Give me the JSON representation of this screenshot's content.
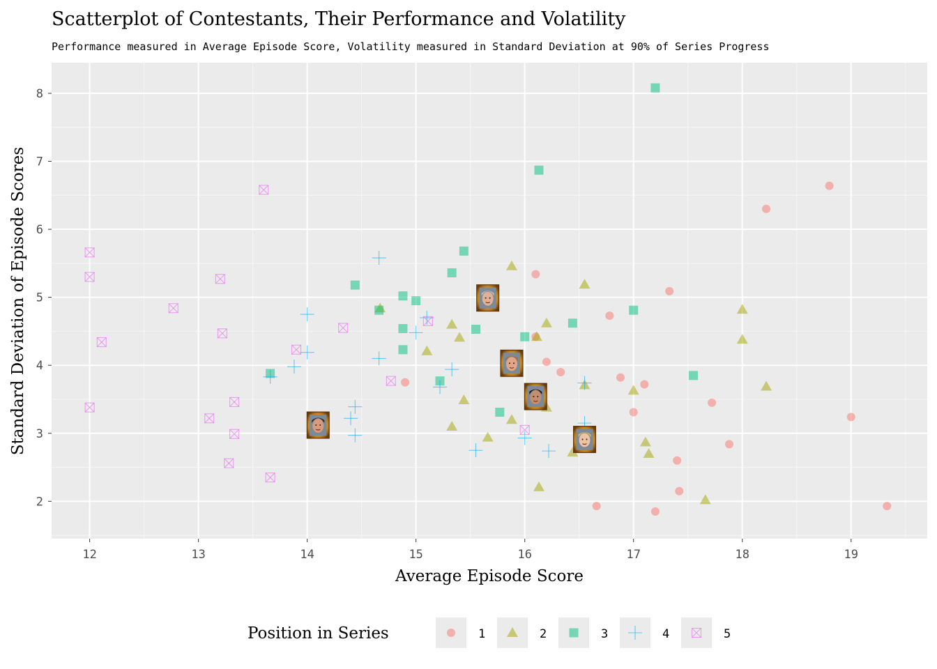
{
  "chart_data": {
    "type": "scatter",
    "title": "Scatterplot of Contestants, Their Performance and Volatility",
    "subtitle": "Performance measured in Average Episode Score, Volatility measured in Standard Deviation at 90% of Series Progress",
    "xlabel": "Average Episode Score",
    "ylabel": "Standard Deviation of Episode Scores",
    "xlim": [
      11.65,
      19.7
    ],
    "ylim": [
      1.45,
      8.45
    ],
    "x_ticks": [
      "12",
      "13",
      "14",
      "15",
      "16",
      "17",
      "18",
      "19"
    ],
    "y_ticks": [
      "2",
      "3",
      "4",
      "5",
      "6",
      "7",
      "8"
    ],
    "grid": true,
    "legend": {
      "title": "Position in Series",
      "placement": "bottom",
      "entries": [
        "1",
        "2",
        "3",
        "4",
        "5"
      ]
    },
    "series": [
      {
        "name": "1",
        "marker": "circle",
        "color": "#F8766D",
        "points": [
          [
            14.9,
            3.75
          ],
          [
            16.1,
            5.34
          ],
          [
            16.2,
            4.05
          ],
          [
            16.33,
            3.9
          ],
          [
            16.1,
            4.42
          ],
          [
            16.78,
            4.73
          ],
          [
            16.88,
            3.82
          ],
          [
            17.1,
            3.72
          ],
          [
            17.33,
            5.09
          ],
          [
            17.0,
            3.31
          ],
          [
            17.4,
            2.6
          ],
          [
            17.42,
            2.15
          ],
          [
            17.2,
            1.85
          ],
          [
            16.66,
            1.93
          ],
          [
            17.72,
            3.45
          ],
          [
            17.88,
            2.84
          ],
          [
            18.22,
            6.3
          ],
          [
            18.8,
            6.64
          ],
          [
            19.0,
            3.24
          ],
          [
            19.33,
            1.93
          ]
        ]
      },
      {
        "name": "2",
        "marker": "triangle",
        "color": "#A3A500",
        "points": [
          [
            14.67,
            4.84
          ],
          [
            15.1,
            4.21
          ],
          [
            15.33,
            4.6
          ],
          [
            15.4,
            4.41
          ],
          [
            15.44,
            3.49
          ],
          [
            15.33,
            3.1
          ],
          [
            15.66,
            2.94
          ],
          [
            15.88,
            3.2
          ],
          [
            15.88,
            5.46
          ],
          [
            16.11,
            4.42
          ],
          [
            16.2,
            4.62
          ],
          [
            16.2,
            3.38
          ],
          [
            16.13,
            2.21
          ],
          [
            16.44,
            2.72
          ],
          [
            16.55,
            5.19
          ],
          [
            16.55,
            3.71
          ],
          [
            17.0,
            3.63
          ],
          [
            17.11,
            2.87
          ],
          [
            17.14,
            2.7
          ],
          [
            17.66,
            2.02
          ],
          [
            18.0,
            4.82
          ],
          [
            18.0,
            4.38
          ],
          [
            18.22,
            3.69
          ]
        ]
      },
      {
        "name": "3",
        "marker": "square",
        "color": "#00BF7D",
        "points": [
          [
            13.66,
            3.88
          ],
          [
            14.44,
            5.18
          ],
          [
            14.66,
            4.81
          ],
          [
            14.88,
            5.02
          ],
          [
            14.88,
            4.54
          ],
          [
            14.88,
            4.23
          ],
          [
            15.0,
            4.95
          ],
          [
            15.22,
            3.77
          ],
          [
            15.33,
            5.36
          ],
          [
            15.44,
            5.68
          ],
          [
            15.55,
            4.53
          ],
          [
            15.77,
            3.31
          ],
          [
            16.0,
            4.42
          ],
          [
            16.13,
            6.87
          ],
          [
            16.44,
            4.62
          ],
          [
            17.0,
            4.81
          ],
          [
            17.2,
            8.08
          ],
          [
            17.55,
            3.85
          ]
        ]
      },
      {
        "name": "4",
        "marker": "plus",
        "color": "#00B0F6",
        "points": [
          [
            13.66,
            3.83
          ],
          [
            13.88,
            3.98
          ],
          [
            14.0,
            4.75
          ],
          [
            14.0,
            4.19
          ],
          [
            14.4,
            3.22
          ],
          [
            14.44,
            3.39
          ],
          [
            14.44,
            2.97
          ],
          [
            14.66,
            5.58
          ],
          [
            14.66,
            4.1
          ],
          [
            15.0,
            4.48
          ],
          [
            15.1,
            4.7
          ],
          [
            15.22,
            3.68
          ],
          [
            15.33,
            3.94
          ],
          [
            15.55,
            2.75
          ],
          [
            16.0,
            2.93
          ],
          [
            16.22,
            2.74
          ],
          [
            16.55,
            3.74
          ],
          [
            16.55,
            3.15
          ]
        ]
      },
      {
        "name": "5",
        "marker": "square-x",
        "color": "#E76BF3",
        "points": [
          [
            12.0,
            5.66
          ],
          [
            12.0,
            5.3
          ],
          [
            12.0,
            3.38
          ],
          [
            12.11,
            4.34
          ],
          [
            12.77,
            4.84
          ],
          [
            13.1,
            3.22
          ],
          [
            13.2,
            5.27
          ],
          [
            13.22,
            4.47
          ],
          [
            13.28,
            2.56
          ],
          [
            13.33,
            3.46
          ],
          [
            13.33,
            2.99
          ],
          [
            13.6,
            6.58
          ],
          [
            13.66,
            2.35
          ],
          [
            13.9,
            4.23
          ],
          [
            14.33,
            4.55
          ],
          [
            14.77,
            3.77
          ],
          [
            15.11,
            4.65
          ],
          [
            16.0,
            3.05
          ]
        ]
      }
    ],
    "highlighted_contestants": [
      [
        14.1,
        3.12
      ],
      [
        15.66,
        4.99
      ],
      [
        15.88,
        4.03
      ],
      [
        16.1,
        3.54
      ],
      [
        16.55,
        2.91
      ]
    ]
  }
}
